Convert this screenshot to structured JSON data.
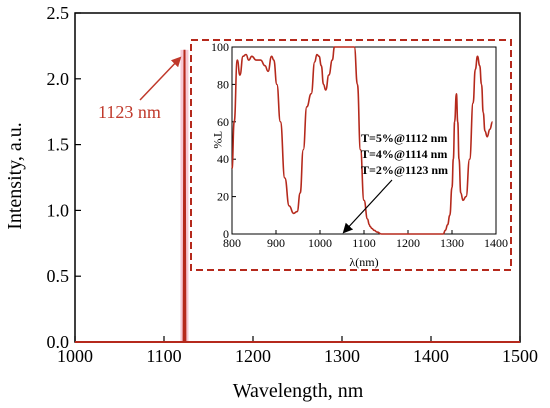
{
  "colors": {
    "trace": "#b5291c",
    "callout": "#c0392b",
    "peak_highlight": "#f6c9d6"
  },
  "chart_data": [
    {
      "type": "line",
      "xlabel": "Wavelength, nm",
      "ylabel": "Intensity, a.u.",
      "xlim": [
        1000,
        1500
      ],
      "ylim": [
        0,
        2.5
      ],
      "xticks": [
        1000,
        1100,
        1200,
        1300,
        1400,
        1500
      ],
      "xtick_labels": [
        "1000",
        "1100",
        "1200",
        "1300",
        "1400",
        "1500"
      ],
      "yticks": [
        0.0,
        0.5,
        1.0,
        1.5,
        2.0,
        2.5
      ],
      "ytick_labels": [
        "0.0",
        "0.5",
        "1.0",
        "1.5",
        "2.0",
        "2.5"
      ],
      "x": [
        1000,
        1122,
        1123,
        1124,
        1500
      ],
      "y": [
        0.0,
        0.0,
        2.22,
        0.0,
        0.0
      ],
      "annotation": "1123 nm",
      "grid": false
    },
    {
      "type": "line",
      "xlabel": "λ(nm)",
      "ylabel": "T%",
      "xlim": [
        800,
        1400
      ],
      "ylim": [
        0,
        100
      ],
      "xticks": [
        800,
        900,
        1000,
        1100,
        1200,
        1300,
        1400
      ],
      "xtick_labels": [
        "800",
        "900",
        "1000",
        "1100",
        "1200",
        "1300",
        "1400"
      ],
      "yticks": [
        0,
        20,
        40,
        60,
        80,
        100
      ],
      "ytick_labels": [
        "0",
        "20",
        "40",
        "60",
        "80",
        "100"
      ],
      "x": [
        800,
        805,
        812,
        818,
        825,
        832,
        838,
        845,
        855,
        865,
        875,
        882,
        890,
        895,
        902,
        910,
        920,
        930,
        940,
        948,
        955,
        962,
        970,
        980,
        988,
        993,
        998,
        1003,
        1008,
        1013,
        1020,
        1028,
        1033,
        1040,
        1050,
        1060,
        1070,
        1078,
        1085,
        1092,
        1100,
        1108,
        1112,
        1114,
        1118,
        1123,
        1130,
        1140,
        1160,
        1200,
        1240,
        1270,
        1280,
        1285,
        1290,
        1295,
        1300,
        1303,
        1306,
        1310,
        1313,
        1316,
        1320,
        1325,
        1332,
        1340,
        1348,
        1353,
        1358,
        1363,
        1367,
        1371,
        1375,
        1380,
        1386,
        1392
      ],
      "y": [
        35,
        60,
        93,
        85,
        95,
        96,
        93,
        95,
        93,
        93,
        90,
        87,
        95,
        93,
        80,
        60,
        30,
        15,
        11,
        12,
        22,
        45,
        68,
        75,
        92,
        96,
        95,
        90,
        80,
        77,
        85,
        93,
        100,
        100,
        100,
        100,
        100,
        100,
        80,
        45,
        18,
        8,
        5,
        4,
        3,
        2,
        1,
        0,
        0,
        0,
        0,
        0,
        0,
        2,
        5,
        10,
        25,
        40,
        60,
        75,
        60,
        40,
        22,
        18,
        20,
        40,
        70,
        88,
        95,
        90,
        80,
        65,
        55,
        52,
        56,
        60
      ],
      "annotations": [
        "T=5%@1112 nm",
        "T=4%@1114 nm",
        "T=2%@1123 nm"
      ],
      "grid": false
    }
  ]
}
